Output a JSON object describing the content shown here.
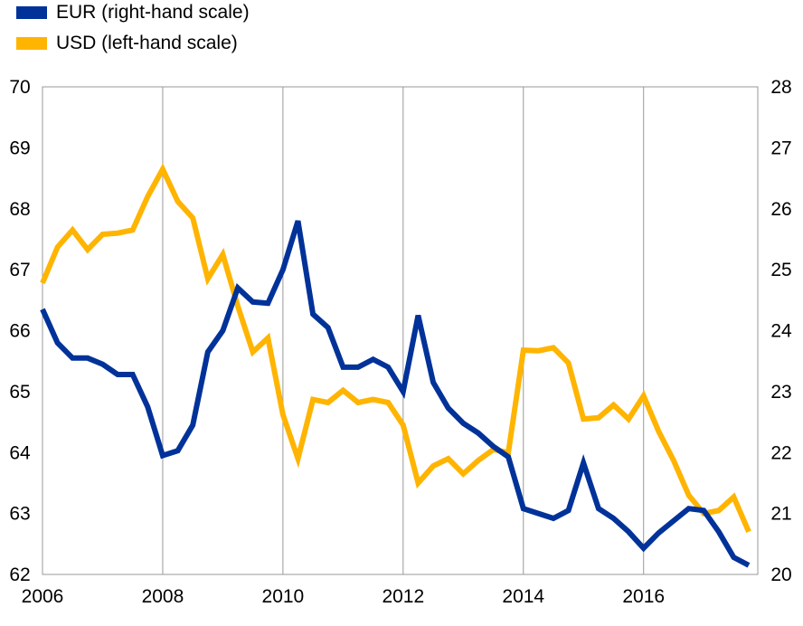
{
  "chart_data": {
    "type": "line",
    "title": "",
    "xlabel": "",
    "x_ticks": [
      "2006",
      "2008",
      "2010",
      "2012",
      "2014",
      "2016"
    ],
    "x_range": [
      2006.0,
      2017.9
    ],
    "y_left": {
      "ticks": [
        "62",
        "63",
        "64",
        "65",
        "66",
        "67",
        "68",
        "69",
        "70"
      ],
      "range": [
        62,
        70
      ]
    },
    "y_right": {
      "ticks": [
        "20",
        "21",
        "22",
        "23",
        "24",
        "25",
        "26",
        "27",
        "28"
      ],
      "range": [
        20,
        28
      ]
    },
    "grid": {
      "vertical": true,
      "horizontal": false
    },
    "legend": {
      "position": "top-left"
    },
    "series": [
      {
        "name": "EUR (right-hand scale)",
        "axis": "right",
        "color": "#003299",
        "x": [
          2006.0,
          2006.25,
          2006.5,
          2006.75,
          2007.0,
          2007.25,
          2007.5,
          2007.75,
          2008.0,
          2008.25,
          2008.5,
          2008.75,
          2009.0,
          2009.25,
          2009.5,
          2009.75,
          2010.0,
          2010.25,
          2010.5,
          2010.75,
          2011.0,
          2011.25,
          2011.5,
          2011.75,
          2012.0,
          2012.25,
          2012.5,
          2012.75,
          2013.0,
          2013.25,
          2013.5,
          2013.75,
          2014.0,
          2014.25,
          2014.5,
          2014.75,
          2015.0,
          2015.25,
          2015.5,
          2015.75,
          2016.0,
          2016.25,
          2016.5,
          2016.75,
          2017.0,
          2017.25,
          2017.5,
          2017.75
        ],
        "values": [
          24.35,
          23.8,
          23.55,
          23.55,
          23.45,
          23.28,
          23.28,
          22.75,
          21.95,
          22.03,
          22.45,
          23.65,
          24.0,
          24.7,
          24.47,
          24.45,
          25.0,
          25.8,
          24.27,
          24.05,
          23.4,
          23.4,
          23.53,
          23.4,
          23.0,
          24.25,
          23.15,
          22.73,
          22.48,
          22.32,
          22.1,
          21.93,
          21.08,
          21.0,
          20.92,
          21.05,
          21.83,
          21.08,
          20.92,
          20.7,
          20.43,
          20.68,
          20.88,
          21.08,
          21.05,
          20.7,
          20.28,
          20.15
        ]
      },
      {
        "name": "USD (left-hand scale)",
        "axis": "left",
        "color": "#FFB400",
        "x": [
          2006.0,
          2006.25,
          2006.5,
          2006.75,
          2007.0,
          2007.25,
          2007.5,
          2007.75,
          2008.0,
          2008.25,
          2008.5,
          2008.75,
          2009.0,
          2009.25,
          2009.5,
          2009.75,
          2010.0,
          2010.25,
          2010.5,
          2010.75,
          2011.0,
          2011.25,
          2011.5,
          2011.75,
          2012.0,
          2012.25,
          2012.5,
          2012.75,
          2013.0,
          2013.25,
          2013.5,
          2013.75,
          2014.0,
          2014.25,
          2014.5,
          2014.75,
          2015.0,
          2015.25,
          2015.5,
          2015.75,
          2016.0,
          2016.25,
          2016.5,
          2016.75,
          2017.0,
          2017.25,
          2017.5,
          2017.75
        ],
        "values": [
          66.78,
          67.37,
          67.65,
          67.33,
          67.58,
          67.6,
          67.65,
          68.2,
          68.65,
          68.12,
          67.85,
          66.85,
          67.25,
          66.4,
          65.65,
          65.88,
          64.62,
          63.9,
          64.87,
          64.82,
          65.02,
          64.82,
          64.87,
          64.82,
          64.45,
          63.5,
          63.78,
          63.9,
          63.65,
          63.87,
          64.05,
          64.0,
          65.68,
          65.67,
          65.72,
          65.47,
          64.55,
          64.57,
          64.78,
          64.55,
          64.93,
          64.35,
          63.87,
          63.3,
          63.0,
          63.05,
          63.27,
          62.7
        ]
      }
    ]
  }
}
